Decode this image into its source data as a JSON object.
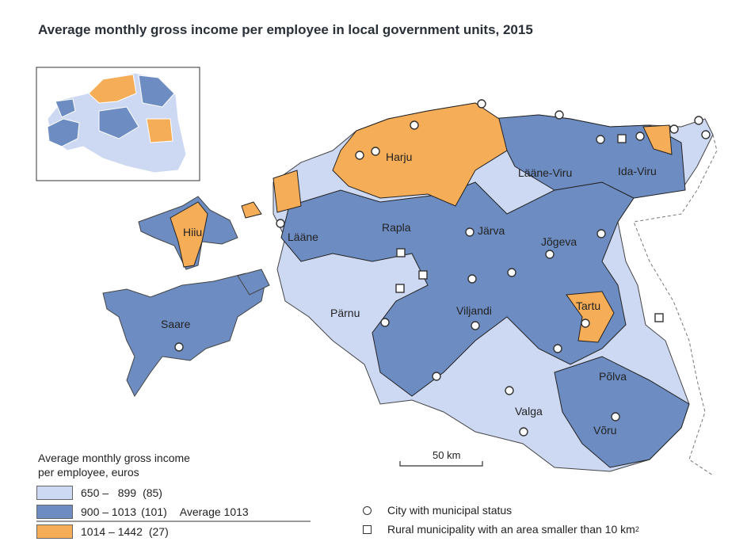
{
  "title": "Average monthly gross income per employee in local government units, 2015",
  "colors": {
    "low": "#cdd9f3",
    "mid": "#6d8dc2",
    "high": "#f5ad57",
    "border": "#2a2a2a",
    "outline": "#ffffff"
  },
  "counties": {
    "harju": "Harju",
    "hiiu": "Hiiu",
    "laane": "Lääne",
    "rapla": "Rapla",
    "jarva": "Järva",
    "laane_viru": "Lääne-Viru",
    "ida_viru": "Ida-Viru",
    "jogeva": "Jõgeva",
    "tartu": "Tartu",
    "parnu": "Pärnu",
    "saare": "Saare",
    "viljandi": "Viljandi",
    "polva": "Põlva",
    "valga": "Valga",
    "voru": "Võru"
  },
  "legend": {
    "title_line1": "Average monthly gross income",
    "title_line2": "per employee, euros",
    "classes": [
      {
        "range": "650 –   899",
        "count": "(85)",
        "color": "#cdd9f3"
      },
      {
        "range": "900 – 1013",
        "count": "(101)",
        "color": "#6d8dc2"
      },
      {
        "range": "1014 – 1442",
        "count": "(27)",
        "color": "#f5ad57"
      }
    ],
    "average_label": "Average 1013",
    "city_label": "City with municipal status",
    "rural_label_main": "Rural municipality with an area smaller than 10 km",
    "rural_label_sup": "2"
  },
  "scale_bar": "50 km"
}
